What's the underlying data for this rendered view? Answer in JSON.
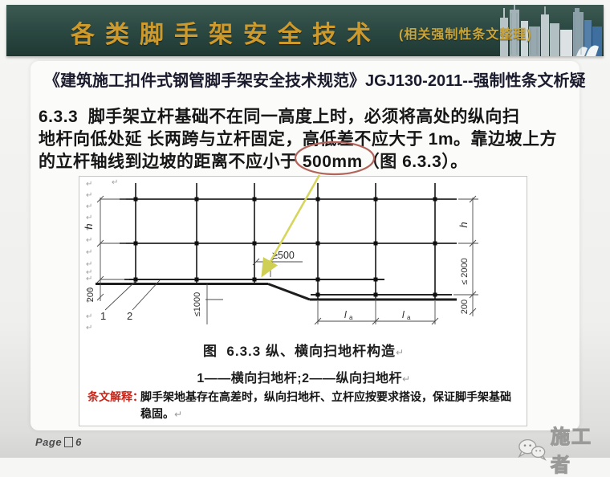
{
  "header": {
    "title": "各类脚手架安全技术",
    "subtitle_paren": "(相关强制性条文整理)"
  },
  "doc_title": "《建筑施工扣件式钢管脚手架安全技术规范》JGJ130-2011--强制性条文析疑",
  "body": {
    "line1": "6.3.3  脚手架立杆基础不在同一高度上时，必须将高处的纵向扫",
    "line2": "地杆向低处延 长两跨与立杆固定，高低差不应大于 1m。靠边坡上方",
    "line3_pre": "的立杆轴线到边坡的距离不应小于 ",
    "line3_circled": "500mm",
    "line3_post": "（图 6.3.3）。"
  },
  "diagram": {
    "labels": {
      "h_left": "h",
      "dim_200_left": "200",
      "dim_500": "≥500",
      "dim_1000": "≤1000",
      "leader_1": "1",
      "leader_2": "2",
      "la_l": "l",
      "la_a": "a",
      "h_right": "h",
      "dim_2000": "≤ 2000",
      "dim_200_right": "200"
    },
    "caption": "图  6.3.3 纵、横向扫地杆构造",
    "legend": "1——横向扫地杆;2——纵向扫地杆"
  },
  "interpretation": {
    "label": "条文解释：",
    "text": "脚手架地基存在高差时，纵向扫地杆、立杆应按要求搭设，保证脚手架基础稳固。"
  },
  "footer": {
    "page_label": "Page",
    "page_number": "6"
  },
  "watermark": {
    "text": "施工者"
  },
  "marks": {
    "pilcrow": "↵"
  },
  "colors": {
    "band_green": "#2c4a43",
    "title_gold": "#cf9a2c",
    "circle_red": "#b2645c",
    "arrow_yellow": "#d6d65e",
    "interp_red": "#c7271b"
  }
}
